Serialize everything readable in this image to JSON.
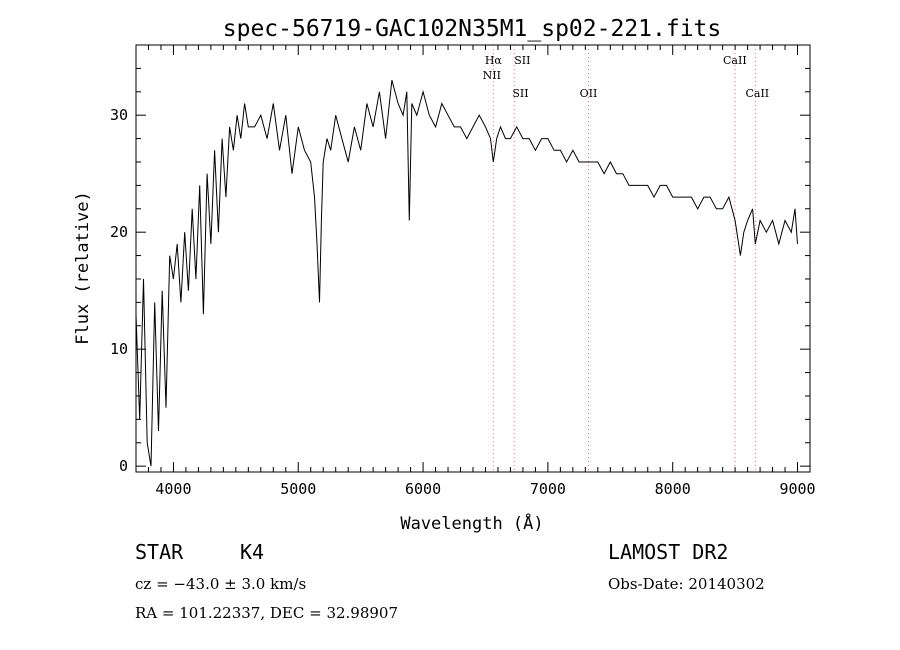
{
  "chart_data": {
    "type": "line",
    "title": "spec-56719-GAC102N35M1_sp02-221.fits",
    "xlabel": "Wavelength (Å)",
    "ylabel": "Flux (relative)",
    "xlim": [
      3700,
      9100
    ],
    "ylim": [
      -0.5,
      36
    ],
    "xticks": [
      4000,
      5000,
      6000,
      7000,
      8000,
      9000
    ],
    "yticks": [
      0,
      10,
      20,
      30
    ],
    "line_color": "#000000",
    "marker_color": "#ff6b6b",
    "grid": false,
    "series": [
      {
        "x": [
          3700,
          3730,
          3760,
          3790,
          3820,
          3850,
          3880,
          3910,
          3940,
          3970,
          4000,
          4030,
          4060,
          4090,
          4120,
          4150,
          4180,
          4210,
          4240,
          4270,
          4300,
          4330,
          4360,
          4390,
          4420,
          4450,
          4480,
          4510,
          4540,
          4570,
          4600,
          4650,
          4700,
          4750,
          4800,
          4850,
          4900,
          4950,
          5000,
          5050,
          5100,
          5130,
          5150,
          5170,
          5185,
          5200,
          5230,
          5260,
          5300,
          5350,
          5400,
          5450,
          5500,
          5550,
          5600,
          5650,
          5700,
          5750,
          5800,
          5840,
          5870,
          5890,
          5910,
          5950,
          6000,
          6050,
          6100,
          6150,
          6200,
          6250,
          6300,
          6350,
          6400,
          6450,
          6500,
          6540,
          6563,
          6590,
          6620,
          6660,
          6700,
          6750,
          6800,
          6850,
          6900,
          6950,
          7000,
          7050,
          7100,
          7150,
          7200,
          7250,
          7300,
          7350,
          7400,
          7450,
          7500,
          7550,
          7600,
          7650,
          7700,
          7750,
          7800,
          7850,
          7900,
          7950,
          8000,
          8050,
          8100,
          8150,
          8200,
          8250,
          8300,
          8350,
          8400,
          8450,
          8500,
          8542,
          8570,
          8600,
          8640,
          8662,
          8700,
          8750,
          8800,
          8850,
          8900,
          8950,
          8980,
          9000
        ],
        "y": [
          13,
          4,
          16,
          2,
          0,
          14,
          3,
          15,
          5,
          18,
          16,
          19,
          14,
          20,
          15,
          22,
          16,
          24,
          13,
          25,
          19,
          27,
          20,
          28,
          23,
          29,
          27,
          30,
          28,
          31,
          29,
          29,
          30,
          28,
          31,
          27,
          30,
          25,
          29,
          27,
          26,
          23,
          19,
          14,
          21,
          26,
          28,
          27,
          30,
          28,
          26,
          29,
          27,
          31,
          29,
          32,
          28,
          33,
          31,
          30,
          32,
          21,
          31,
          30,
          32,
          30,
          29,
          31,
          30,
          29,
          29,
          28,
          29,
          30,
          29,
          28,
          26,
          28,
          29,
          28,
          28,
          29,
          28,
          28,
          27,
          28,
          28,
          27,
          27,
          26,
          27,
          26,
          26,
          26,
          26,
          25,
          26,
          25,
          25,
          24,
          24,
          24,
          24,
          23,
          24,
          24,
          23,
          23,
          23,
          23,
          22,
          23,
          23,
          22,
          22,
          23,
          21,
          18,
          20,
          21,
          22,
          19,
          21,
          20,
          21,
          19,
          21,
          20,
          22,
          19
        ]
      }
    ],
    "annotations": [
      {
        "label": "Hα",
        "x": 6563
      },
      {
        "label": "NII",
        "x": 6583
      },
      {
        "label": "SII",
        "x": 6716
      },
      {
        "label": "SII",
        "x": 6731
      },
      {
        "label": "OII",
        "x": 7325
      },
      {
        "label": "CaII",
        "x": 8498
      },
      {
        "label": "CaII",
        "x": 8662
      }
    ],
    "marker_lines_x": [
      6563,
      6731,
      7325,
      8498,
      8662
    ]
  },
  "info": {
    "class": "STAR",
    "subclass": "K4",
    "survey": "LAMOST DR2",
    "cz": "cz = −43.0 ± 3.0 km/s",
    "obs_date": "Obs-Date: 20140302",
    "coords": "RA = 101.22337, DEC =  32.98907"
  }
}
